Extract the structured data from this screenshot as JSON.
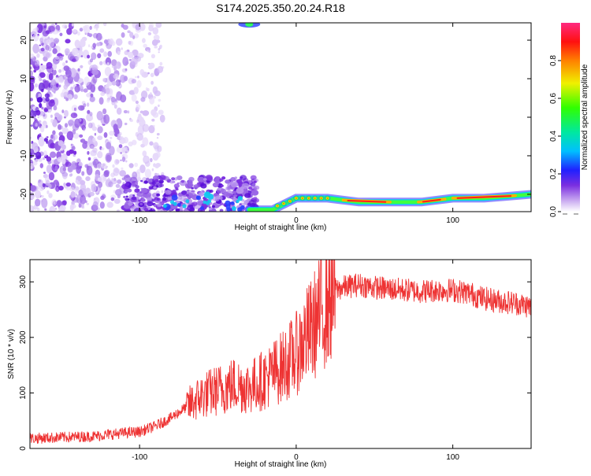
{
  "title": "S174.2025.350.20.24.R18",
  "chart_data": [
    {
      "type": "heatmap",
      "title": "S174.2025.350.20.24.R18",
      "xlabel": "Height of straight line (km)",
      "ylabel": "Frequency (Hz)",
      "xlim": [
        -170,
        150
      ],
      "ylim": [
        -24.5,
        24.5
      ],
      "x_ticks": [
        -100,
        0,
        100
      ],
      "y_ticks": [
        20,
        10,
        0,
        -10,
        -20
      ],
      "colorbar": {
        "label": "Normalized spectral amplitude",
        "range": [
          0.0,
          1.0
        ],
        "ticks": [
          0.0,
          0.2,
          0.4,
          0.6,
          0.8
        ],
        "tick_labels": [
          "0.0",
          "0.2",
          "0.4",
          "0.6",
          "0.8"
        ]
      },
      "ridge_points": [
        {
          "x": -30,
          "y": -24
        },
        {
          "x": -15,
          "y": -24
        },
        {
          "x": -5,
          "y": -22
        },
        {
          "x": 0,
          "y": -21
        },
        {
          "x": 20,
          "y": -21
        },
        {
          "x": 40,
          "y": -22
        },
        {
          "x": 80,
          "y": -22
        },
        {
          "x": 100,
          "y": -21
        },
        {
          "x": 120,
          "y": -21
        },
        {
          "x": 150,
          "y": -20
        }
      ]
    },
    {
      "type": "line",
      "xlabel": "Height of straight line (km)",
      "ylabel": "SNR (10 * v/v)",
      "xlim": [
        -170,
        150
      ],
      "ylim": [
        0,
        340
      ],
      "x_ticks": [
        -100,
        0,
        100
      ],
      "y_ticks": [
        0,
        100,
        200,
        300
      ],
      "series": [
        {
          "name": "SNR",
          "color": "#ee3333",
          "x": [
            -170,
            -150,
            -130,
            -110,
            -100,
            -90,
            -80,
            -70,
            -60,
            -50,
            -40,
            -30,
            -20,
            -10,
            0,
            5,
            10,
            15,
            20,
            25,
            30,
            40,
            50,
            60,
            70,
            80,
            90,
            100,
            110,
            120,
            130,
            140,
            150
          ],
          "y": [
            18,
            20,
            22,
            28,
            30,
            40,
            55,
            75,
            95,
            105,
            115,
            110,
            125,
            145,
            170,
            195,
            215,
            240,
            265,
            285,
            290,
            295,
            290,
            287,
            285,
            283,
            285,
            285,
            280,
            270,
            265,
            262,
            255
          ]
        }
      ]
    }
  ]
}
